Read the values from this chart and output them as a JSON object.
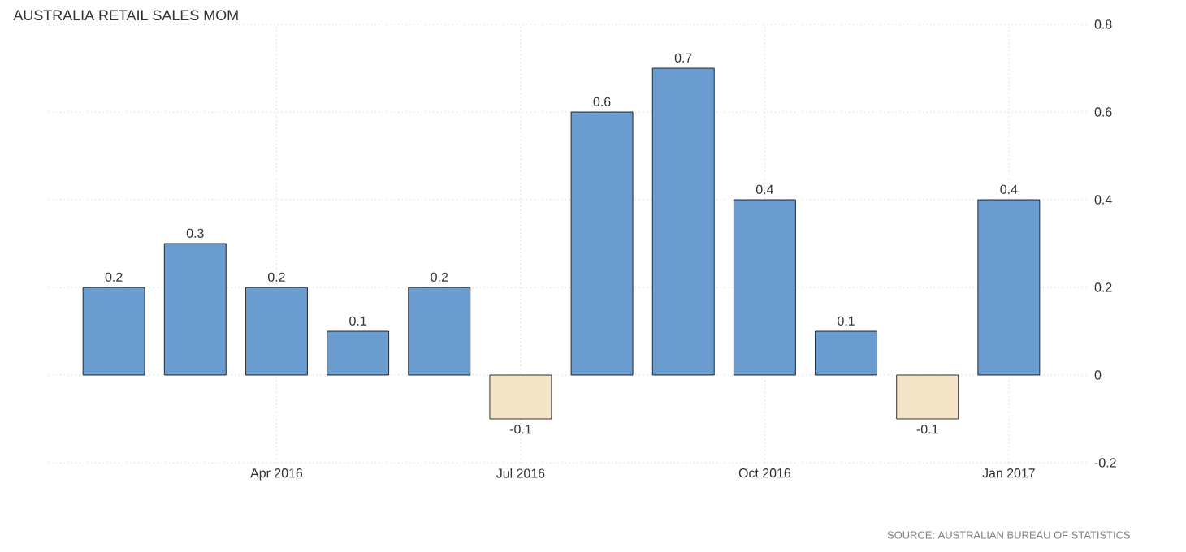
{
  "chart_data": {
    "type": "bar",
    "title": "AUSTRALIA RETAIL SALES MOM",
    "categories": [
      null,
      null,
      "Apr 2016",
      null,
      null,
      "Jul 2016",
      null,
      null,
      "Oct 2016",
      null,
      null,
      "Jan 2017"
    ],
    "values": [
      0.2,
      0.3,
      0.2,
      0.1,
      0.2,
      -0.1,
      0.6,
      0.7,
      0.4,
      0.1,
      -0.1,
      0.4
    ],
    "colors": [
      "#6a9ccf",
      "#6a9ccf",
      "#6a9ccf",
      "#6a9ccf",
      "#6a9ccf",
      "#f3e4c8",
      "#6a9ccf",
      "#6a9ccf",
      "#6a9ccf",
      "#6a9ccf",
      "#f3e4c8",
      "#6a9ccf"
    ],
    "ylim": [
      -0.2,
      0.8
    ],
    "yticks": [
      -0.2,
      0,
      0.2,
      0.4,
      0.6,
      0.8
    ],
    "grid": true,
    "data_labels": true,
    "annotations": [
      "SOURCE: AUSTRALIAN BUREAU OF STATISTICS"
    ]
  }
}
